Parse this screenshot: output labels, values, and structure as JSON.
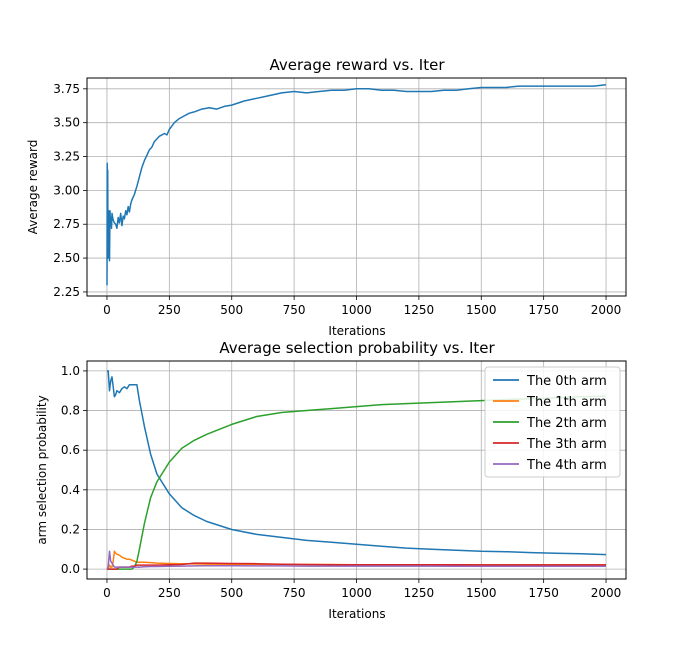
{
  "chart_data": [
    {
      "type": "line",
      "title": "Average reward vs. Iter",
      "xlabel": "Iterations",
      "ylabel": "Average reward",
      "xlim": [
        -80,
        2080
      ],
      "ylim": [
        2.22,
        3.83
      ],
      "xticks": [
        0,
        250,
        500,
        750,
        1000,
        1250,
        1500,
        1750,
        2000
      ],
      "yticks": [
        2.25,
        2.5,
        2.75,
        3.0,
        3.25,
        3.5,
        3.75
      ],
      "ytick_labels": [
        "2.25",
        "2.50",
        "2.75",
        "3.00",
        "3.25",
        "3.50",
        "3.75"
      ],
      "grid": true,
      "series": [
        {
          "color": "#1f77b4",
          "x": [
            0,
            1,
            2,
            3,
            4,
            6,
            8,
            10,
            12,
            14,
            16,
            18,
            20,
            25,
            30,
            35,
            40,
            45,
            50,
            55,
            60,
            65,
            70,
            75,
            80,
            85,
            90,
            95,
            100,
            110,
            120,
            130,
            140,
            150,
            160,
            170,
            180,
            190,
            200,
            210,
            220,
            230,
            240,
            250,
            270,
            290,
            310,
            330,
            350,
            380,
            410,
            440,
            470,
            500,
            550,
            600,
            650,
            700,
            750,
            800,
            850,
            900,
            950,
            1000,
            1050,
            1100,
            1150,
            1200,
            1250,
            1300,
            1350,
            1400,
            1450,
            1500,
            1550,
            1600,
            1650,
            1700,
            1750,
            1800,
            1850,
            1900,
            1950,
            2000
          ],
          "y": [
            2.3,
            3.2,
            2.95,
            3.15,
            2.5,
            2.85,
            2.6,
            2.48,
            2.85,
            2.75,
            2.8,
            2.72,
            2.83,
            2.78,
            2.76,
            2.75,
            2.72,
            2.8,
            2.76,
            2.83,
            2.74,
            2.81,
            2.79,
            2.85,
            2.82,
            2.88,
            2.84,
            2.9,
            2.93,
            2.97,
            3.03,
            3.1,
            3.17,
            3.22,
            3.26,
            3.3,
            3.32,
            3.36,
            3.38,
            3.4,
            3.41,
            3.42,
            3.41,
            3.45,
            3.5,
            3.53,
            3.55,
            3.57,
            3.58,
            3.6,
            3.61,
            3.6,
            3.62,
            3.63,
            3.66,
            3.68,
            3.7,
            3.72,
            3.73,
            3.72,
            3.73,
            3.74,
            3.74,
            3.75,
            3.75,
            3.74,
            3.74,
            3.73,
            3.73,
            3.73,
            3.74,
            3.74,
            3.75,
            3.76,
            3.76,
            3.76,
            3.77,
            3.77,
            3.77,
            3.77,
            3.77,
            3.77,
            3.77,
            3.78
          ]
        }
      ]
    },
    {
      "type": "line",
      "title": "Average selection probability vs. Iter",
      "xlabel": "Iterations",
      "ylabel": "arm selection probability",
      "xlim": [
        -80,
        2080
      ],
      "ylim": [
        -0.05,
        1.05
      ],
      "xticks": [
        0,
        250,
        500,
        750,
        1000,
        1250,
        1500,
        1750,
        2000
      ],
      "yticks": [
        0.0,
        0.2,
        0.4,
        0.6,
        0.8,
        1.0
      ],
      "ytick_labels": [
        "0.0",
        "0.2",
        "0.4",
        "0.6",
        "0.8",
        "1.0"
      ],
      "grid": true,
      "legend": "top-right",
      "x": [
        0,
        5,
        10,
        15,
        20,
        25,
        30,
        35,
        40,
        50,
        60,
        70,
        80,
        90,
        100,
        110,
        120,
        130,
        150,
        175,
        200,
        250,
        300,
        350,
        400,
        500,
        600,
        700,
        800,
        900,
        1000,
        1100,
        1200,
        1300,
        1400,
        1500,
        1600,
        1700,
        1800,
        1900,
        2000
      ],
      "series": [
        {
          "name": "The 0th arm",
          "color": "#1f77b4",
          "values": [
            1.0,
            1.0,
            0.9,
            0.95,
            0.97,
            0.92,
            0.87,
            0.88,
            0.9,
            0.89,
            0.91,
            0.92,
            0.91,
            0.93,
            0.93,
            0.93,
            0.93,
            0.85,
            0.72,
            0.58,
            0.48,
            0.38,
            0.31,
            0.27,
            0.24,
            0.2,
            0.175,
            0.16,
            0.145,
            0.135,
            0.125,
            0.115,
            0.106,
            0.1,
            0.095,
            0.09,
            0.088,
            0.083,
            0.08,
            0.077,
            0.073
          ]
        },
        {
          "name": "The 1th arm",
          "color": "#ff7f0e",
          "values": [
            0.0,
            0.0,
            0.02,
            0.01,
            0.01,
            0.04,
            0.09,
            0.08,
            0.075,
            0.07,
            0.06,
            0.055,
            0.05,
            0.05,
            0.045,
            0.04,
            0.035,
            0.035,
            0.035,
            0.033,
            0.03,
            0.028,
            0.027,
            0.026,
            0.025,
            0.024,
            0.024,
            0.023,
            0.023,
            0.023,
            0.022,
            0.022,
            0.022,
            0.022,
            0.022,
            0.022,
            0.022,
            0.022,
            0.022,
            0.022,
            0.022
          ]
        },
        {
          "name": "The 2th arm",
          "color": "#2ca02c",
          "values": [
            0.0,
            0.0,
            0.0,
            0.0,
            0.0,
            0.0,
            0.0,
            0.0,
            0.0,
            0.0,
            0.0,
            0.0,
            0.0,
            0.0,
            0.0,
            0.01,
            0.04,
            0.1,
            0.23,
            0.36,
            0.44,
            0.54,
            0.61,
            0.65,
            0.68,
            0.73,
            0.77,
            0.79,
            0.8,
            0.81,
            0.82,
            0.83,
            0.835,
            0.84,
            0.845,
            0.85,
            0.855,
            0.86,
            0.865,
            0.87,
            0.872
          ]
        },
        {
          "name": "The 3th arm",
          "color": "#d62728",
          "values": [
            0.0,
            0.0,
            0.0,
            0.0,
            0.0,
            0.0,
            0.0,
            0.0,
            0.0,
            0.01,
            0.01,
            0.01,
            0.01,
            0.01,
            0.015,
            0.015,
            0.02,
            0.02,
            0.02,
            0.02,
            0.02,
            0.022,
            0.023,
            0.03,
            0.03,
            0.028,
            0.027,
            0.024,
            0.023,
            0.022,
            0.022,
            0.022,
            0.022,
            0.022,
            0.022,
            0.021,
            0.021,
            0.021,
            0.021,
            0.021,
            0.021
          ]
        },
        {
          "name": "The 4th arm",
          "color": "#9467bd",
          "values": [
            0.0,
            0.01,
            0.09,
            0.04,
            0.03,
            0.02,
            0.01,
            0.01,
            0.01,
            0.01,
            0.01,
            0.01,
            0.01,
            0.01,
            0.01,
            0.01,
            0.01,
            0.01,
            0.012,
            0.013,
            0.013,
            0.014,
            0.015,
            0.016,
            0.017,
            0.017,
            0.016,
            0.016,
            0.015,
            0.015,
            0.015,
            0.015,
            0.015,
            0.015,
            0.014,
            0.014,
            0.014,
            0.014,
            0.014,
            0.014,
            0.014
          ]
        }
      ]
    }
  ]
}
